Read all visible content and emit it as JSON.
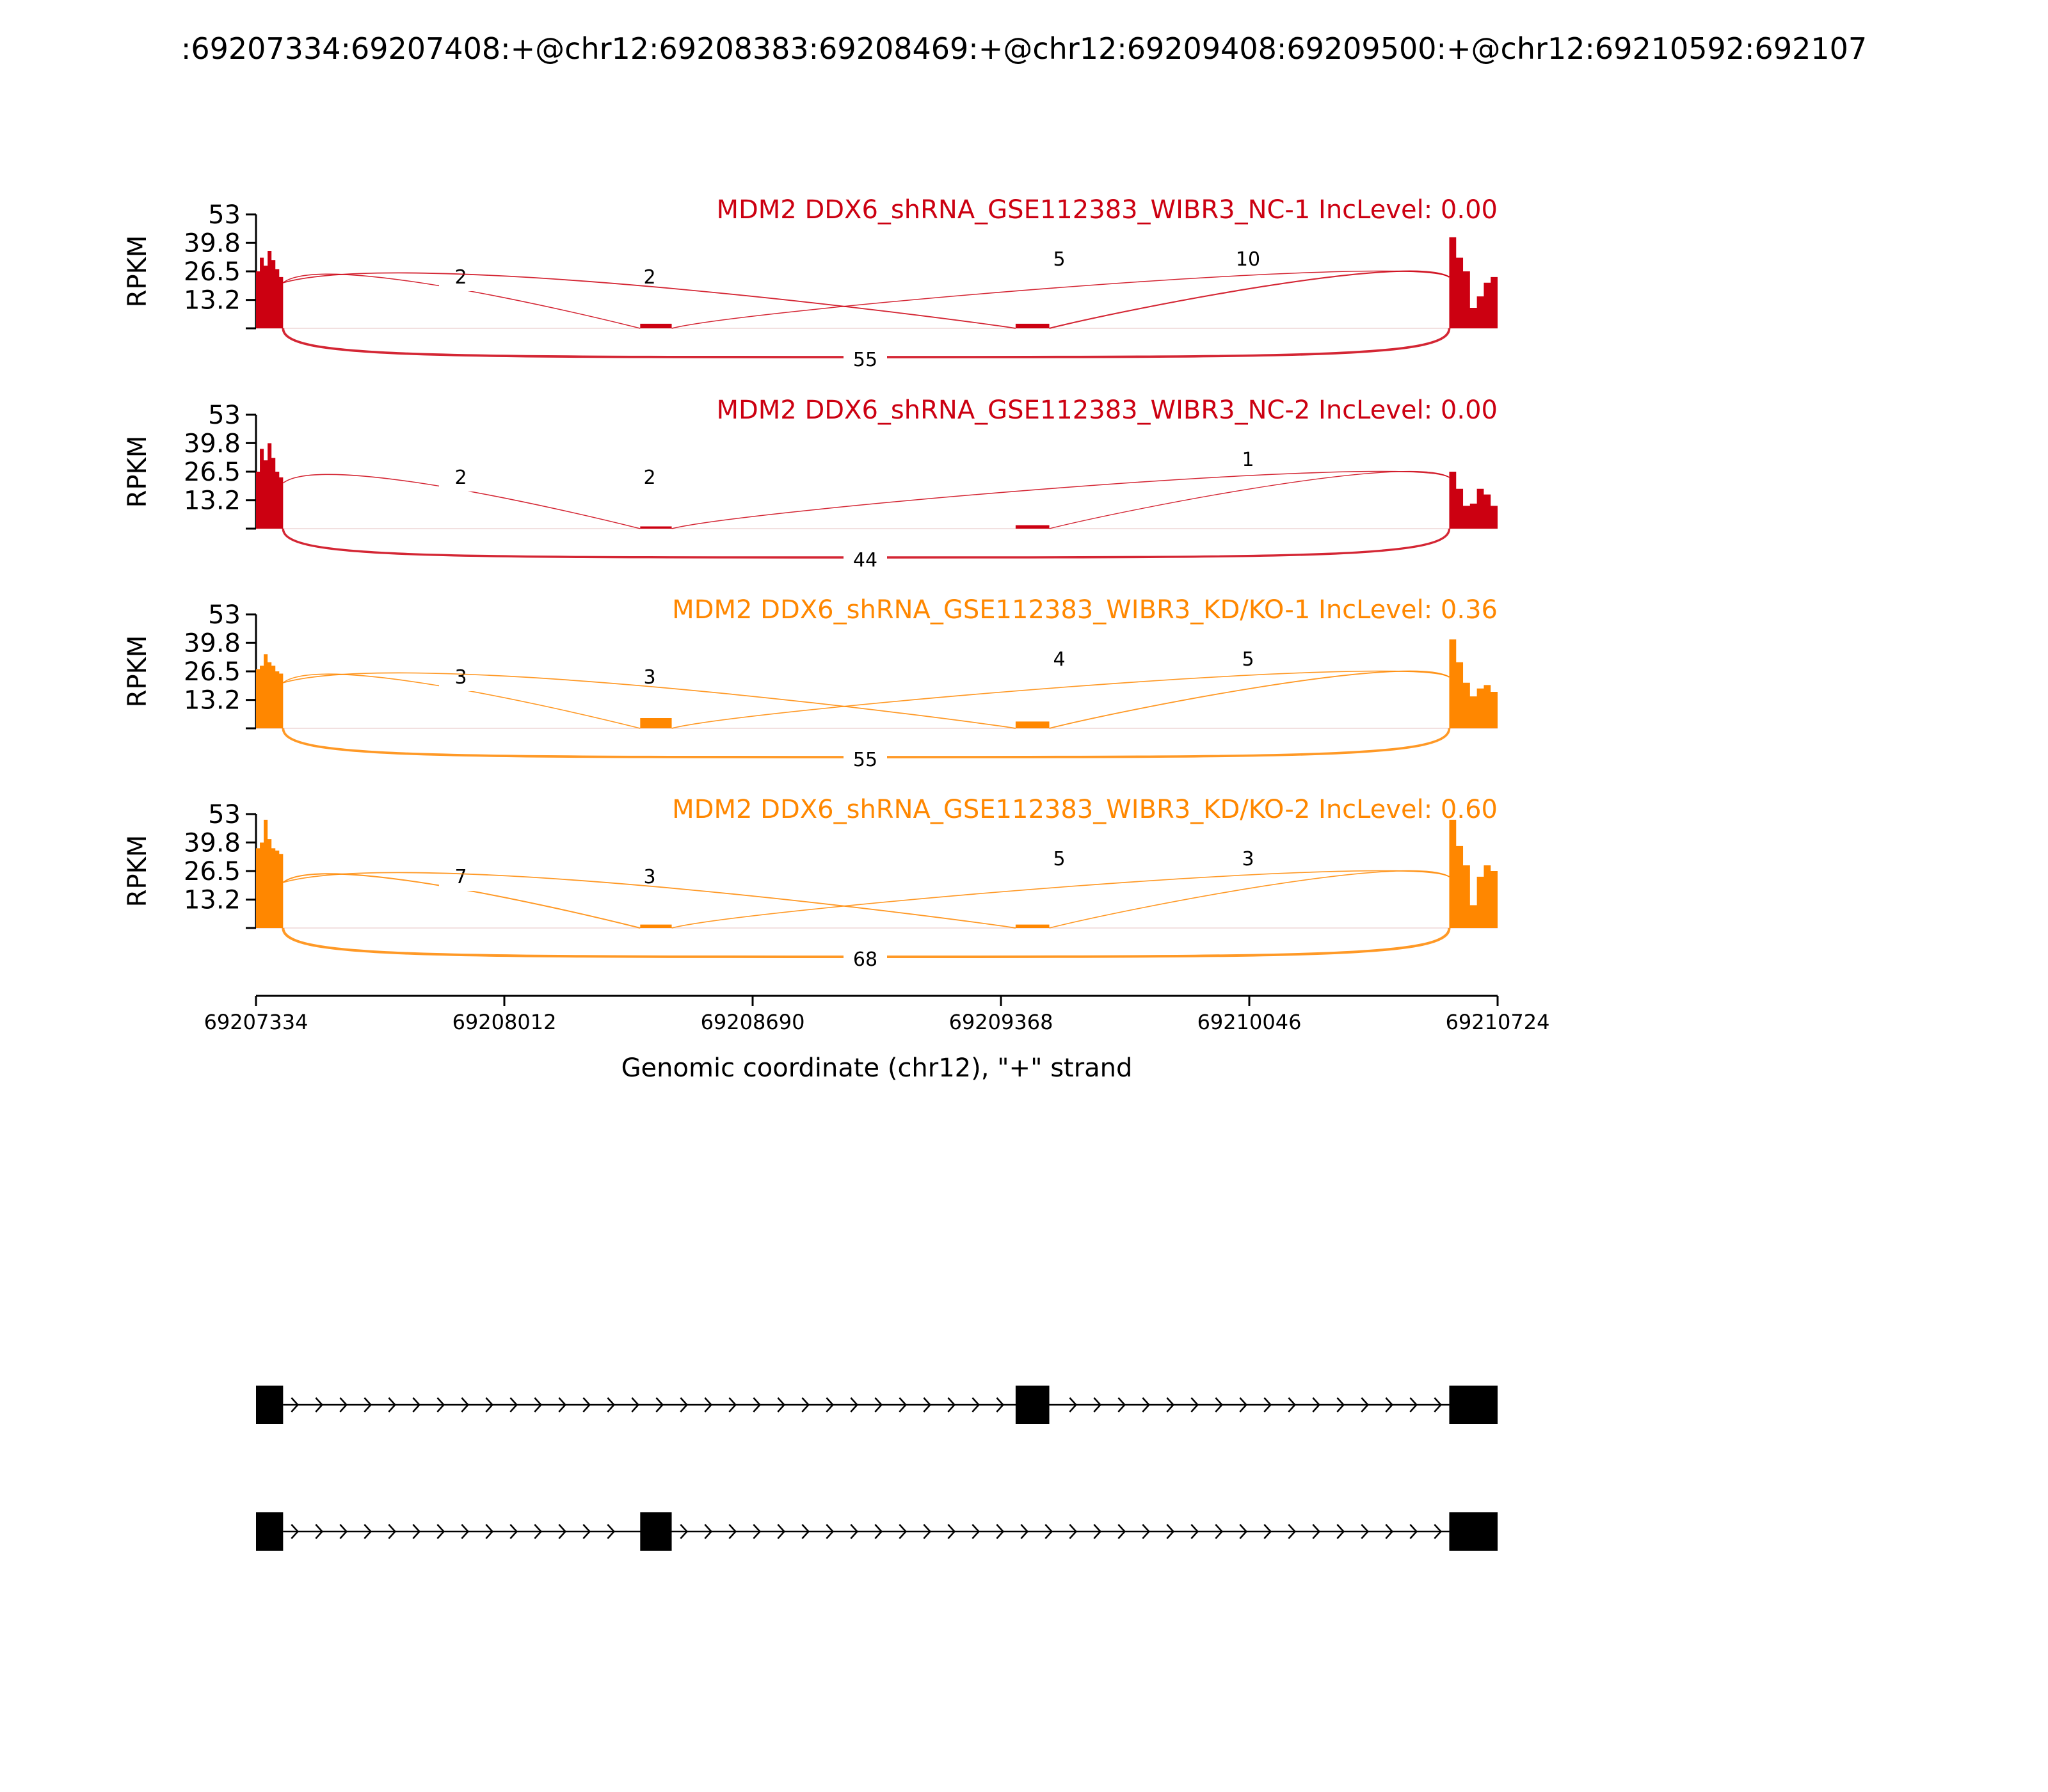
{
  "title": ":69207334:69207408:+@chr12:69208383:69208469:+@chr12:69209408:69209500:+@chr12:69210592:692107",
  "chart_data": {
    "type": "area",
    "subtype": "sashimi",
    "ylabel": "RPKM",
    "ytick_labels": [
      "53",
      "39.8",
      "26.5",
      "13.2"
    ],
    "ylim": [
      0,
      53
    ],
    "xlabel": "Genomic coordinate (chr12), \"+\" strand",
    "xlim": [
      69207334,
      69210724
    ],
    "xticks": [
      69207334,
      69208012,
      69208690,
      69209368,
      69210046,
      69210724
    ],
    "exons": [
      {
        "start": 69207334,
        "end": 69207408
      },
      {
        "start": 69208383,
        "end": 69208469
      },
      {
        "start": 69209408,
        "end": 69209500
      },
      {
        "start": 69210592,
        "end": 69210724
      }
    ],
    "junction_keys": [
      "e1-e2",
      "e2-e4",
      "e1-e3",
      "e3-e4",
      "e1-e4"
    ],
    "tracks": [
      {
        "label": "MDM2 DDX6_shRNA_GSE112383_WIBR3_NC-1 IncLevel: 0.00",
        "color": "#cc0011",
        "coverage": {
          "e1": [
            0.5,
            0.62,
            0.55,
            0.68,
            0.6,
            0.52,
            0.45
          ],
          "e2": [
            0.04
          ],
          "e3": [
            0.04
          ],
          "e4": [
            0.8,
            0.62,
            0.5,
            0.18,
            0.28,
            0.4,
            0.45
          ]
        },
        "junctions": [
          2,
          2,
          5,
          10,
          55
        ]
      },
      {
        "label": "MDM2 DDX6_shRNA_GSE112383_WIBR3_NC-2 IncLevel: 0.00",
        "color": "#cc0011",
        "coverage": {
          "e1": [
            0.5,
            0.7,
            0.6,
            0.75,
            0.62,
            0.5,
            0.45
          ],
          "e2": [
            0.02
          ],
          "e3": [
            0.03
          ],
          "e4": [
            0.5,
            0.35,
            0.2,
            0.22,
            0.35,
            0.3,
            0.2
          ]
        },
        "junctions": [
          2,
          2,
          null,
          1,
          44
        ]
      },
      {
        "label": "MDM2 DDX6_shRNA_GSE112383_WIBR3_KD/KO-1 IncLevel: 0.36",
        "color": "#ff8700",
        "coverage": {
          "e1": [
            0.52,
            0.55,
            0.65,
            0.58,
            0.55,
            0.5,
            0.48
          ],
          "e2": [
            0.09
          ],
          "e3": [
            0.06
          ],
          "e4": [
            0.78,
            0.58,
            0.4,
            0.28,
            0.35,
            0.38,
            0.32
          ]
        },
        "junctions": [
          3,
          3,
          4,
          5,
          55
        ]
      },
      {
        "label": "MDM2 DDX6_shRNA_GSE112383_WIBR3_KD/KO-2 IncLevel: 0.60",
        "color": "#ff8700",
        "coverage": {
          "e1": [
            0.7,
            0.75,
            0.95,
            0.78,
            0.7,
            0.68,
            0.65
          ],
          "e2": [
            0.03
          ],
          "e3": [
            0.03
          ],
          "e4": [
            0.95,
            0.72,
            0.55,
            0.2,
            0.45,
            0.55,
            0.5
          ]
        },
        "junctions": [
          7,
          3,
          5,
          3,
          68
        ]
      }
    ],
    "isoforms": [
      {
        "exons": [
          0,
          2,
          3
        ]
      },
      {
        "exons": [
          0,
          1,
          3
        ]
      }
    ]
  }
}
